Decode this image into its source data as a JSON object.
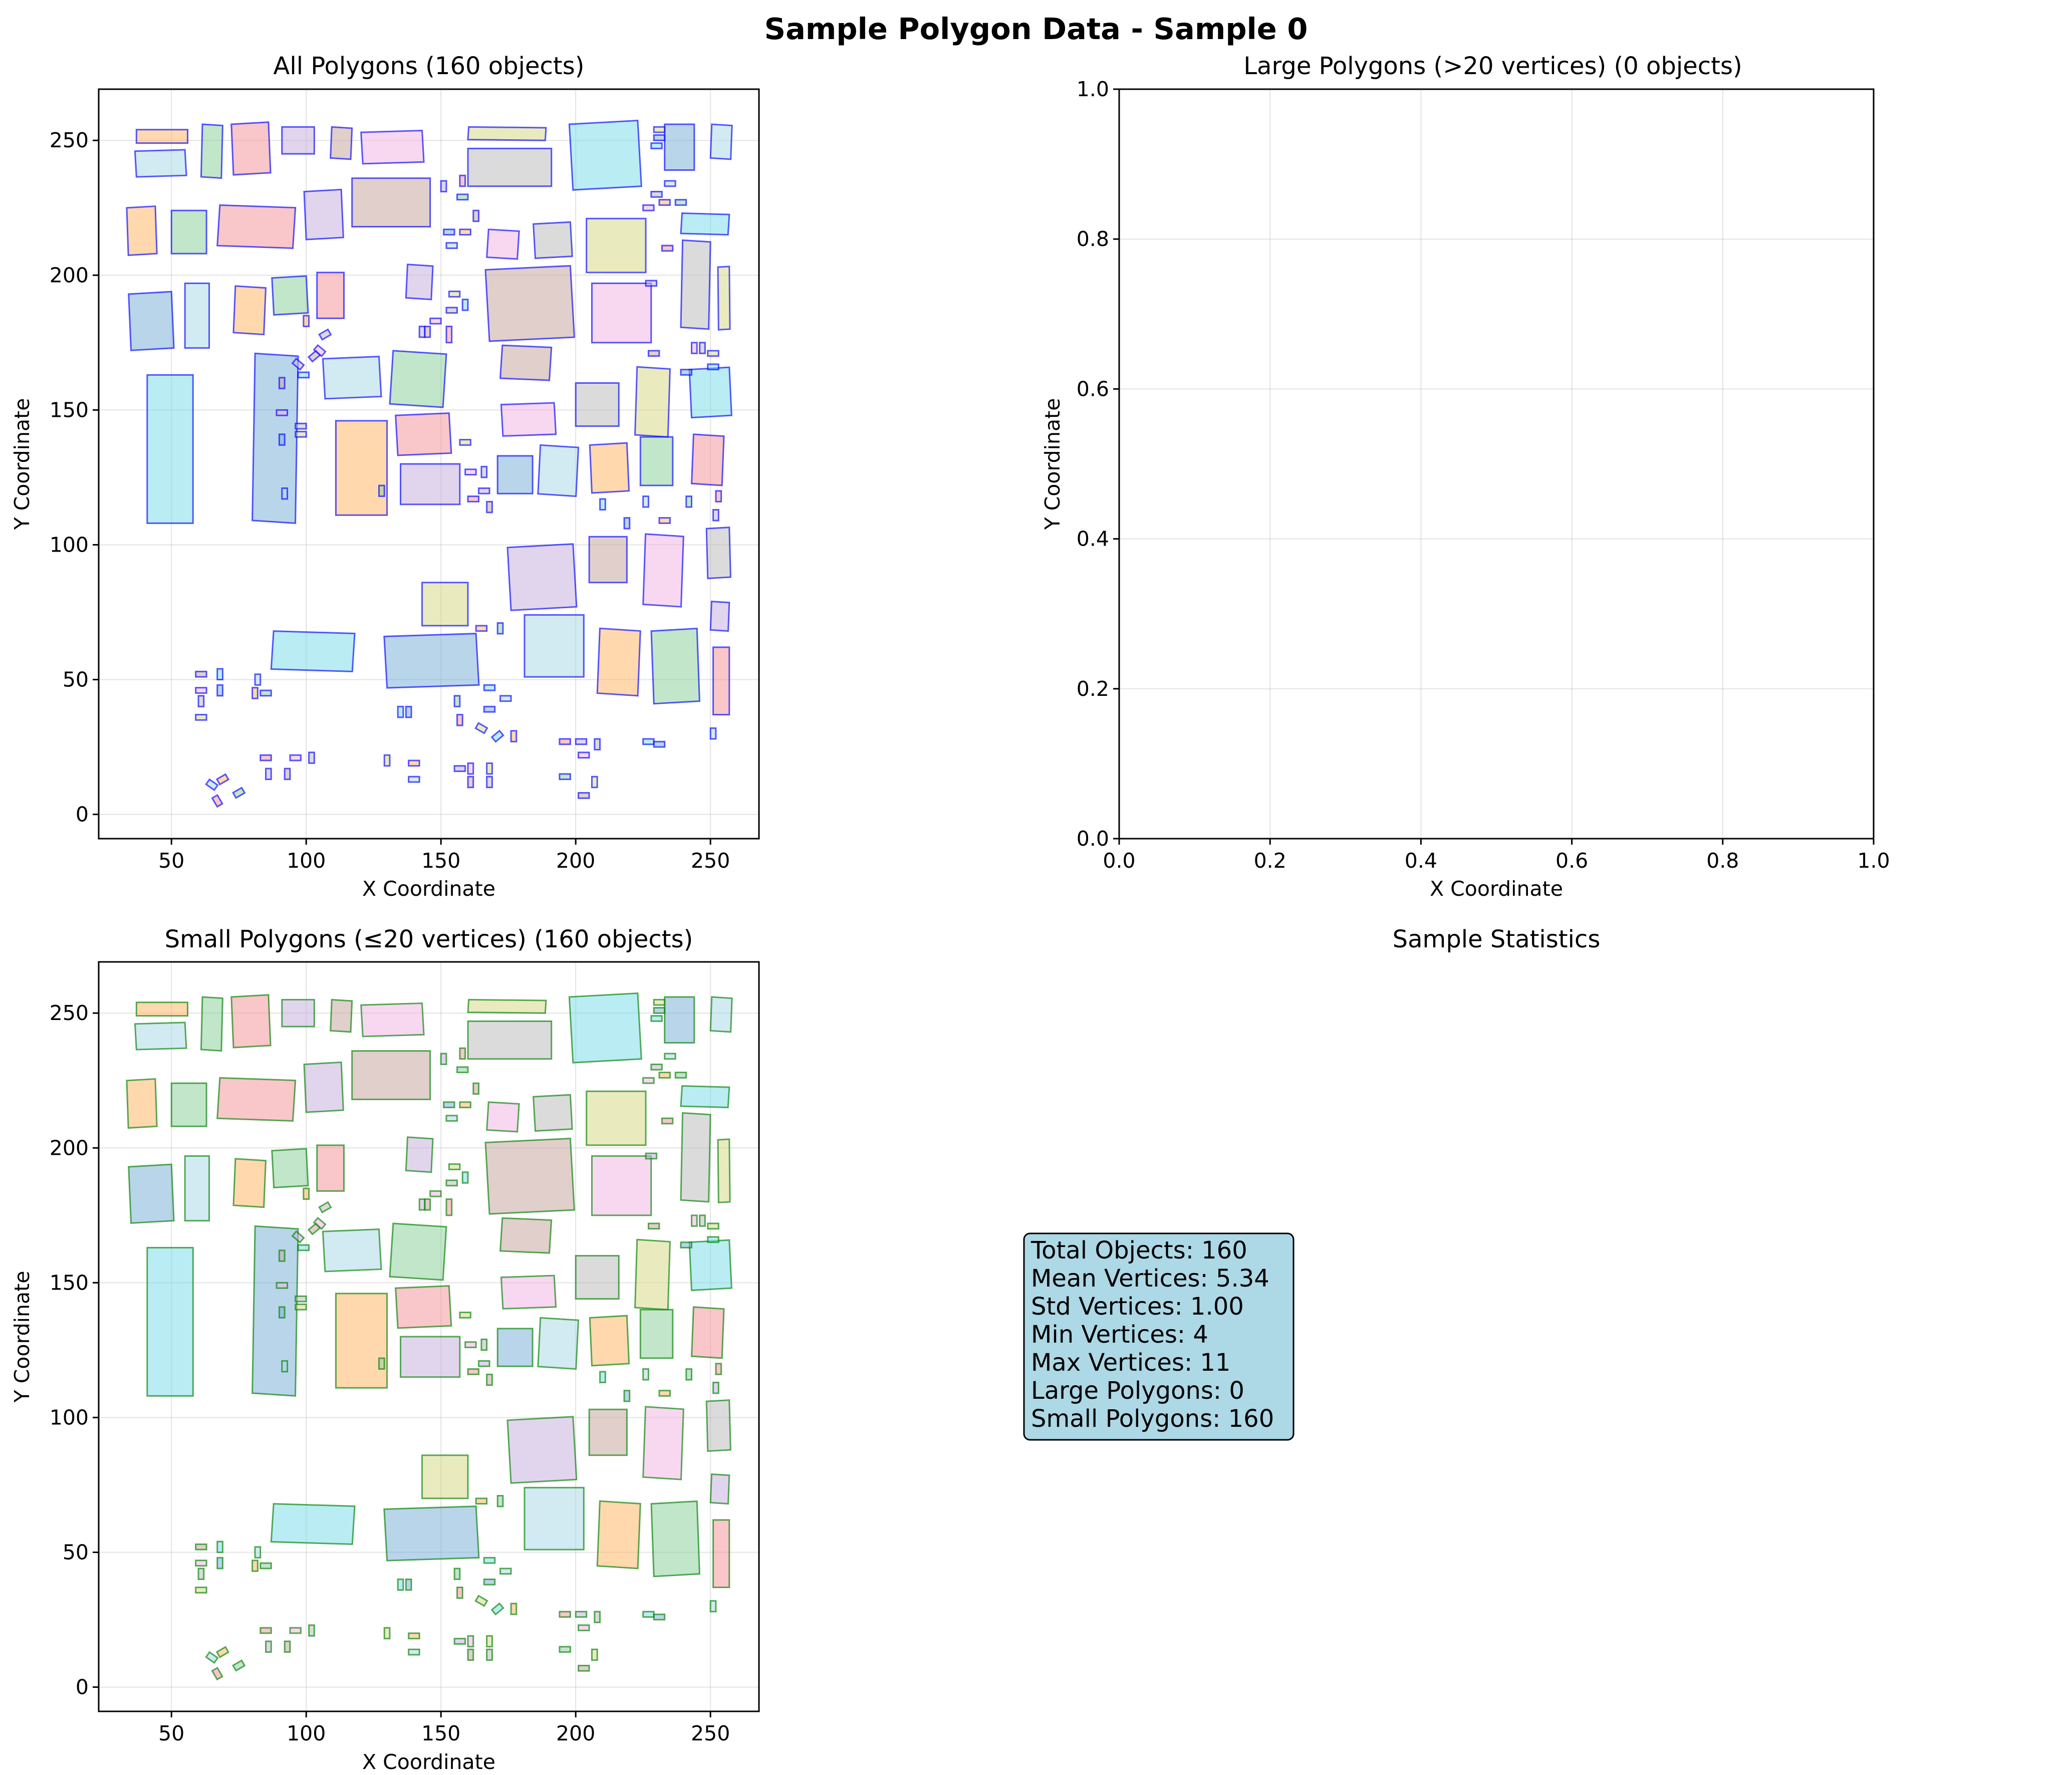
{
  "figure": {
    "suptitle": "Sample Polygon Data - Sample 0"
  },
  "panels": {
    "all": {
      "title": "All Polygons (160 objects)",
      "xlabel": "X Coordinate",
      "ylabel": "Y Coordinate",
      "xticks": [
        "50",
        "100",
        "150",
        "200",
        "250"
      ],
      "yticks": [
        "0",
        "50",
        "100",
        "150",
        "200",
        "250"
      ]
    },
    "large": {
      "title": "Large Polygons (>20 vertices) (0 objects)",
      "xlabel": "X Coordinate",
      "ylabel": "Y Coordinate",
      "xticks": [
        "0.0",
        "0.2",
        "0.4",
        "0.6",
        "0.8",
        "1.0"
      ],
      "yticks": [
        "0.0",
        "0.2",
        "0.4",
        "0.6",
        "0.8",
        "1.0"
      ]
    },
    "small": {
      "title": "Small Polygons (≤20 vertices) (160 objects)",
      "xlabel": "X Coordinate",
      "ylabel": "Y Coordinate",
      "xticks": [
        "50",
        "100",
        "150",
        "200",
        "250"
      ],
      "yticks": [
        "0",
        "50",
        "100",
        "150",
        "200",
        "250"
      ]
    },
    "stats": {
      "title": "Sample Statistics",
      "lines": [
        "Total Objects: 160",
        "Mean Vertices: 5.34",
        "Std Vertices: 1.00",
        "Min Vertices: 4",
        "Max Vertices: 11",
        "Large Polygons: 0",
        "Small Polygons: 160"
      ],
      "box_color": "#add8e6"
    }
  },
  "chart_data": [
    {
      "type": "scatter",
      "panel": "all",
      "title": "All Polygons (160 objects)",
      "xlabel": "X Coordinate",
      "ylabel": "Y Coordinate",
      "xlim": [
        23,
        268
      ],
      "ylim": [
        -9,
        269
      ],
      "grid": true,
      "edge_color": "#0000ff",
      "fill_palette": [
        "#add8e6",
        "#ffb86c",
        "#8fd19e",
        "#f4989c",
        "#c9b3e0",
        "#c8a8a0",
        "#f3b6e6",
        "#bdbdbd",
        "#d9d98a",
        "#80deea",
        "#7fb2d9"
      ],
      "building_rectangles": [
        [
          37,
          237,
          55,
          246
        ],
        [
          37,
          249,
          56,
          254
        ],
        [
          61,
          236,
          69,
          256
        ],
        [
          73,
          238,
          86,
          256
        ],
        [
          91,
          245,
          103,
          255
        ],
        [
          109,
          243,
          117,
          255
        ],
        [
          121,
          242,
          143,
          253
        ],
        [
          160,
          233,
          191,
          247
        ],
        [
          160,
          250,
          189,
          255
        ],
        [
          199,
          233,
          223,
          256
        ],
        [
          233,
          239,
          244,
          256
        ],
        [
          250,
          243,
          258,
          256
        ],
        [
          34,
          208,
          44,
          225
        ],
        [
          50,
          208,
          63,
          224
        ],
        [
          67,
          210,
          96,
          226
        ],
        [
          100,
          214,
          113,
          231
        ],
        [
          117,
          218,
          146,
          236
        ],
        [
          167,
          206,
          179,
          217
        ],
        [
          185,
          207,
          198,
          219
        ],
        [
          204,
          201,
          226,
          221
        ],
        [
          239,
          215,
          257,
          223
        ],
        [
          35,
          173,
          50,
          193
        ],
        [
          55,
          173,
          64,
          197
        ],
        [
          73,
          178,
          85,
          196
        ],
        [
          88,
          186,
          100,
          199
        ],
        [
          104,
          184,
          114,
          201
        ],
        [
          137,
          191,
          147,
          204
        ],
        [
          168,
          177,
          198,
          202
        ],
        [
          206,
          175,
          228,
          197
        ],
        [
          239,
          180,
          250,
          213
        ],
        [
          253,
          180,
          257,
          203
        ],
        [
          41,
          108,
          58,
          163
        ],
        [
          80,
          108,
          97,
          171
        ],
        [
          107,
          155,
          127,
          169
        ],
        [
          111,
          111,
          130,
          146
        ],
        [
          131,
          151,
          152,
          172
        ],
        [
          134,
          134,
          153,
          148
        ],
        [
          135,
          115,
          157,
          130
        ],
        [
          172,
          161,
          191,
          174
        ],
        [
          173,
          141,
          192,
          152
        ],
        [
          200,
          144,
          216,
          160
        ],
        [
          222,
          140,
          235,
          166
        ],
        [
          243,
          148,
          257,
          165
        ],
        [
          171,
          119,
          184,
          133
        ],
        [
          186,
          118,
          201,
          137
        ],
        [
          206,
          120,
          219,
          137
        ],
        [
          224,
          122,
          236,
          140
        ],
        [
          243,
          122,
          255,
          141
        ],
        [
          176,
          77,
          199,
          99
        ],
        [
          205,
          86,
          219,
          103
        ],
        [
          225,
          77,
          240,
          104
        ],
        [
          249,
          88,
          257,
          106
        ],
        [
          143,
          70,
          160,
          86
        ],
        [
          87,
          53,
          118,
          68
        ],
        [
          130,
          48,
          163,
          66
        ],
        [
          181,
          51,
          203,
          74
        ],
        [
          208,
          44,
          224,
          69
        ],
        [
          229,
          42,
          245,
          68
        ],
        [
          251,
          37,
          257,
          62
        ],
        [
          250,
          68,
          257,
          79
        ]
      ],
      "small_rectangles": [
        [
          59,
          51,
          63,
          53
        ],
        [
          59,
          45,
          63,
          47
        ],
        [
          60,
          40,
          62,
          44
        ],
        [
          59,
          35,
          63,
          37
        ],
        [
          67,
          50,
          69,
          54
        ],
        [
          67,
          44,
          69,
          48
        ],
        [
          81,
          48,
          83,
          52
        ],
        [
          80,
          43,
          82,
          47
        ],
        [
          83,
          44,
          87,
          46
        ],
        [
          83,
          20,
          87,
          22
        ],
        [
          85,
          13,
          87,
          17
        ],
        [
          92,
          13,
          94,
          17
        ],
        [
          94,
          20,
          98,
          22
        ],
        [
          101,
          19,
          103,
          23
        ],
        [
          129,
          18,
          131,
          22
        ],
        [
          134,
          36,
          136,
          40
        ],
        [
          137,
          36,
          139,
          40
        ],
        [
          138,
          12,
          142,
          14
        ],
        [
          138,
          18,
          142,
          20
        ],
        [
          155,
          40,
          157,
          44
        ],
        [
          156,
          33,
          158,
          37
        ],
        [
          155,
          16,
          159,
          18
        ],
        [
          160,
          10,
          162,
          14
        ],
        [
          160,
          15,
          162,
          19
        ],
        [
          167,
          10,
          169,
          14
        ],
        [
          167,
          15,
          169,
          19
        ],
        [
          166,
          46,
          170,
          48
        ],
        [
          166,
          38,
          170,
          40
        ],
        [
          172,
          42,
          176,
          44
        ],
        [
          176,
          27,
          178,
          31
        ],
        [
          194,
          13,
          198,
          15
        ],
        [
          194,
          26,
          198,
          28
        ],
        [
          200,
          26,
          204,
          28
        ],
        [
          201,
          6,
          205,
          8
        ],
        [
          201,
          21,
          205,
          23
        ],
        [
          207,
          24,
          209,
          28
        ],
        [
          206,
          10,
          208,
          14
        ],
        [
          225,
          26,
          229,
          28
        ],
        [
          229,
          25,
          233,
          27
        ],
        [
          250,
          28,
          252,
          32
        ],
        [
          163,
          68,
          167,
          70
        ],
        [
          171,
          67,
          173,
          71
        ],
        [
          160,
          116,
          164,
          118
        ],
        [
          164,
          119,
          168,
          121
        ],
        [
          167,
          112,
          169,
          116
        ],
        [
          159,
          126,
          163,
          128
        ],
        [
          165,
          125,
          167,
          129
        ],
        [
          157,
          137,
          161,
          139
        ],
        [
          209,
          113,
          211,
          117
        ],
        [
          218,
          106,
          220,
          110
        ],
        [
          225,
          114,
          227,
          118
        ],
        [
          231,
          108,
          235,
          110
        ],
        [
          241,
          114,
          243,
          118
        ],
        [
          252,
          116,
          254,
          120
        ],
        [
          251,
          109,
          253,
          113
        ],
        [
          90,
          158,
          92,
          162
        ],
        [
          89,
          148,
          93,
          150
        ],
        [
          96,
          143,
          100,
          145
        ],
        [
          96,
          140,
          100,
          142
        ],
        [
          97,
          162,
          101,
          164
        ],
        [
          90,
          137,
          92,
          141
        ],
        [
          91,
          117,
          93,
          121
        ],
        [
          99,
          181,
          101,
          185
        ],
        [
          127,
          118,
          129,
          122
        ],
        [
          152,
          175,
          154,
          181
        ],
        [
          142,
          177,
          144,
          181
        ],
        [
          144,
          177,
          146,
          181
        ],
        [
          146,
          182,
          150,
          184
        ],
        [
          152,
          186,
          156,
          188
        ],
        [
          153,
          192,
          157,
          194
        ],
        [
          158,
          187,
          160,
          191
        ],
        [
          151,
          215,
          155,
          217
        ],
        [
          152,
          210,
          156,
          212
        ],
        [
          157,
          215,
          161,
          217
        ],
        [
          156,
          228,
          160,
          230
        ],
        [
          157,
          233,
          159,
          237
        ],
        [
          150,
          231,
          152,
          235
        ],
        [
          162,
          220,
          164,
          224
        ],
        [
          225,
          224,
          229,
          226
        ],
        [
          228,
          229,
          232,
          231
        ],
        [
          229,
          253,
          233,
          255
        ],
        [
          228,
          247,
          232,
          249
        ],
        [
          229,
          250,
          233,
          252
        ],
        [
          233,
          233,
          237,
          235
        ],
        [
          231,
          226,
          235,
          228
        ],
        [
          237,
          226,
          241,
          228
        ],
        [
          232,
          209,
          236,
          211
        ],
        [
          226,
          196,
          230,
          198
        ],
        [
          227,
          170,
          231,
          172
        ],
        [
          243,
          171,
          245,
          175
        ],
        [
          246,
          171,
          248,
          175
        ],
        [
          249,
          170,
          253,
          172
        ],
        [
          249,
          165,
          253,
          167
        ],
        [
          239,
          163,
          243,
          165
        ]
      ],
      "small_tilted": [
        [
          65,
          11,
          35
        ],
        [
          69,
          13,
          -30
        ],
        [
          75,
          8,
          -30
        ],
        [
          67,
          5,
          60
        ],
        [
          97,
          167,
          40
        ],
        [
          103,
          170,
          -40
        ],
        [
          105,
          172,
          40
        ],
        [
          107,
          178,
          -30
        ],
        [
          165,
          32,
          30
        ],
        [
          171,
          29,
          -40
        ]
      ]
    },
    {
      "type": "scatter",
      "panel": "large",
      "title": "Large Polygons (>20 vertices) (0 objects)",
      "xlabel": "X Coordinate",
      "ylabel": "Y Coordinate",
      "xlim": [
        0,
        1
      ],
      "ylim": [
        0,
        1
      ],
      "grid": true,
      "polygons": []
    },
    {
      "type": "scatter",
      "panel": "small",
      "title": "Small Polygons (≤20 vertices) (160 objects)",
      "xlabel": "X Coordinate",
      "ylabel": "Y Coordinate",
      "xlim": [
        23,
        268
      ],
      "ylim": [
        -9,
        269
      ],
      "grid": true,
      "edge_color": "#008000",
      "same_polygons_as": "all"
    }
  ]
}
